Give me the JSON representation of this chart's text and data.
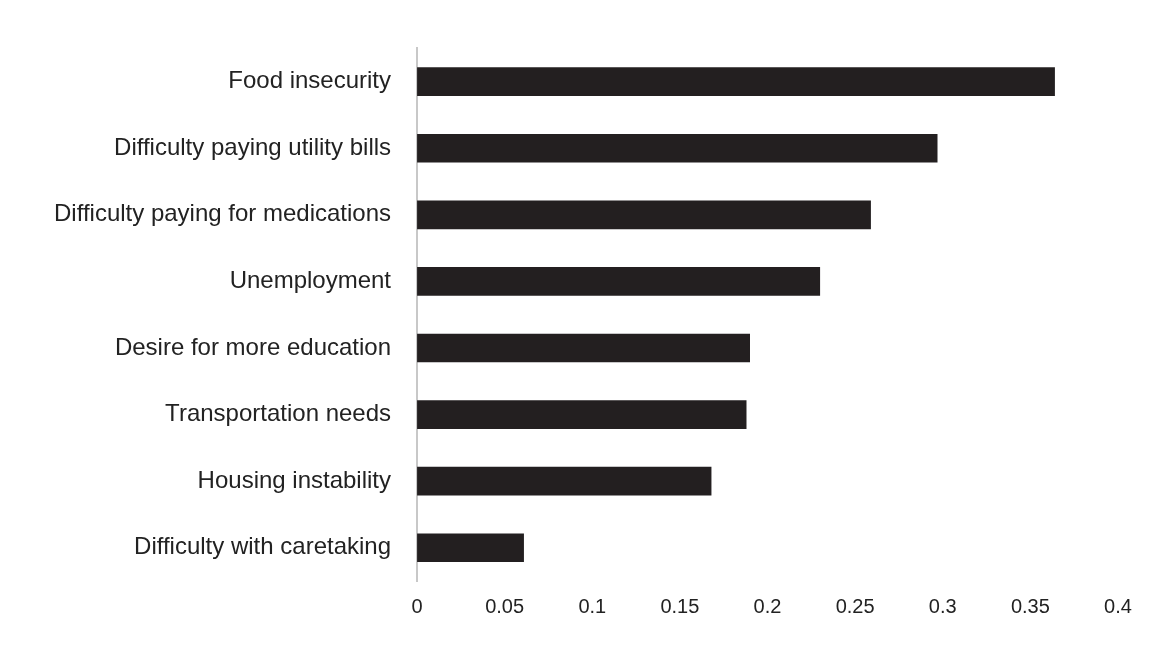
{
  "chart_data": {
    "type": "bar",
    "orientation": "horizontal",
    "categories": [
      "Food insecurity",
      "Difficulty paying utility bills",
      "Difficulty paying for medications",
      "Unemployment",
      "Desire for more education",
      "Transportation needs",
      "Housing instability",
      "Difficulty with caretaking"
    ],
    "values": [
      0.364,
      0.297,
      0.259,
      0.23,
      0.19,
      0.188,
      0.168,
      0.061
    ],
    "color": "#231f20",
    "xlim": [
      0,
      0.4
    ],
    "xticks": [
      0,
      0.05,
      0.1,
      0.15,
      0.2,
      0.25,
      0.3,
      0.35,
      0.4
    ],
    "grid": false,
    "legend": false
  }
}
